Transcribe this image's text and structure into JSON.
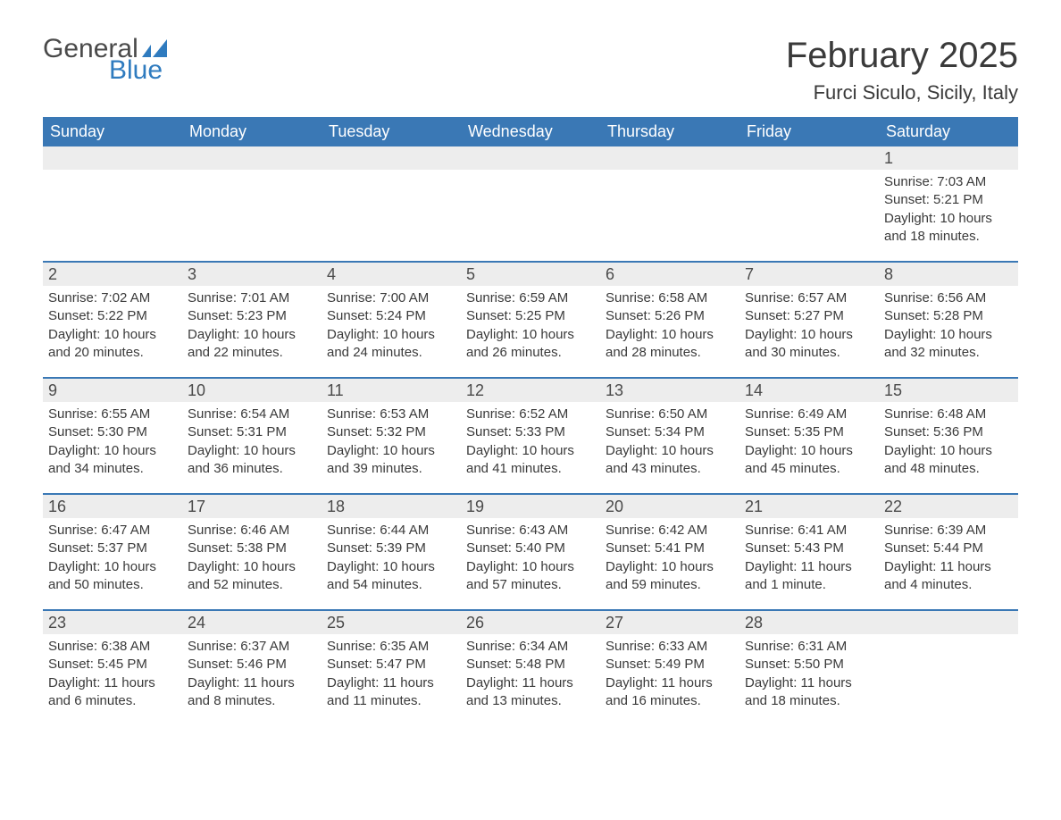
{
  "logo": {
    "text_general": "General",
    "text_blue": "Blue",
    "icon_color": "#2f7bbf"
  },
  "header": {
    "month_title": "February 2025",
    "location": "Furci Siculo, Sicily, Italy"
  },
  "colors": {
    "header_bg": "#3a78b5",
    "header_text": "#ffffff",
    "day_num_bg": "#ededed",
    "day_num_text": "#4a4a4a",
    "body_text": "#3a3a3a",
    "row_border": "#3a78b5",
    "page_bg": "#ffffff"
  },
  "day_of_week_labels": [
    "Sunday",
    "Monday",
    "Tuesday",
    "Wednesday",
    "Thursday",
    "Friday",
    "Saturday"
  ],
  "weeks": [
    [
      {
        "day": "",
        "sunrise": "",
        "sunset": "",
        "daylight": ""
      },
      {
        "day": "",
        "sunrise": "",
        "sunset": "",
        "daylight": ""
      },
      {
        "day": "",
        "sunrise": "",
        "sunset": "",
        "daylight": ""
      },
      {
        "day": "",
        "sunrise": "",
        "sunset": "",
        "daylight": ""
      },
      {
        "day": "",
        "sunrise": "",
        "sunset": "",
        "daylight": ""
      },
      {
        "day": "",
        "sunrise": "",
        "sunset": "",
        "daylight": ""
      },
      {
        "day": "1",
        "sunrise": "Sunrise: 7:03 AM",
        "sunset": "Sunset: 5:21 PM",
        "daylight": "Daylight: 10 hours and 18 minutes."
      }
    ],
    [
      {
        "day": "2",
        "sunrise": "Sunrise: 7:02 AM",
        "sunset": "Sunset: 5:22 PM",
        "daylight": "Daylight: 10 hours and 20 minutes."
      },
      {
        "day": "3",
        "sunrise": "Sunrise: 7:01 AM",
        "sunset": "Sunset: 5:23 PM",
        "daylight": "Daylight: 10 hours and 22 minutes."
      },
      {
        "day": "4",
        "sunrise": "Sunrise: 7:00 AM",
        "sunset": "Sunset: 5:24 PM",
        "daylight": "Daylight: 10 hours and 24 minutes."
      },
      {
        "day": "5",
        "sunrise": "Sunrise: 6:59 AM",
        "sunset": "Sunset: 5:25 PM",
        "daylight": "Daylight: 10 hours and 26 minutes."
      },
      {
        "day": "6",
        "sunrise": "Sunrise: 6:58 AM",
        "sunset": "Sunset: 5:26 PM",
        "daylight": "Daylight: 10 hours and 28 minutes."
      },
      {
        "day": "7",
        "sunrise": "Sunrise: 6:57 AM",
        "sunset": "Sunset: 5:27 PM",
        "daylight": "Daylight: 10 hours and 30 minutes."
      },
      {
        "day": "8",
        "sunrise": "Sunrise: 6:56 AM",
        "sunset": "Sunset: 5:28 PM",
        "daylight": "Daylight: 10 hours and 32 minutes."
      }
    ],
    [
      {
        "day": "9",
        "sunrise": "Sunrise: 6:55 AM",
        "sunset": "Sunset: 5:30 PM",
        "daylight": "Daylight: 10 hours and 34 minutes."
      },
      {
        "day": "10",
        "sunrise": "Sunrise: 6:54 AM",
        "sunset": "Sunset: 5:31 PM",
        "daylight": "Daylight: 10 hours and 36 minutes."
      },
      {
        "day": "11",
        "sunrise": "Sunrise: 6:53 AM",
        "sunset": "Sunset: 5:32 PM",
        "daylight": "Daylight: 10 hours and 39 minutes."
      },
      {
        "day": "12",
        "sunrise": "Sunrise: 6:52 AM",
        "sunset": "Sunset: 5:33 PM",
        "daylight": "Daylight: 10 hours and 41 minutes."
      },
      {
        "day": "13",
        "sunrise": "Sunrise: 6:50 AM",
        "sunset": "Sunset: 5:34 PM",
        "daylight": "Daylight: 10 hours and 43 minutes."
      },
      {
        "day": "14",
        "sunrise": "Sunrise: 6:49 AM",
        "sunset": "Sunset: 5:35 PM",
        "daylight": "Daylight: 10 hours and 45 minutes."
      },
      {
        "day": "15",
        "sunrise": "Sunrise: 6:48 AM",
        "sunset": "Sunset: 5:36 PM",
        "daylight": "Daylight: 10 hours and 48 minutes."
      }
    ],
    [
      {
        "day": "16",
        "sunrise": "Sunrise: 6:47 AM",
        "sunset": "Sunset: 5:37 PM",
        "daylight": "Daylight: 10 hours and 50 minutes."
      },
      {
        "day": "17",
        "sunrise": "Sunrise: 6:46 AM",
        "sunset": "Sunset: 5:38 PM",
        "daylight": "Daylight: 10 hours and 52 minutes."
      },
      {
        "day": "18",
        "sunrise": "Sunrise: 6:44 AM",
        "sunset": "Sunset: 5:39 PM",
        "daylight": "Daylight: 10 hours and 54 minutes."
      },
      {
        "day": "19",
        "sunrise": "Sunrise: 6:43 AM",
        "sunset": "Sunset: 5:40 PM",
        "daylight": "Daylight: 10 hours and 57 minutes."
      },
      {
        "day": "20",
        "sunrise": "Sunrise: 6:42 AM",
        "sunset": "Sunset: 5:41 PM",
        "daylight": "Daylight: 10 hours and 59 minutes."
      },
      {
        "day": "21",
        "sunrise": "Sunrise: 6:41 AM",
        "sunset": "Sunset: 5:43 PM",
        "daylight": "Daylight: 11 hours and 1 minute."
      },
      {
        "day": "22",
        "sunrise": "Sunrise: 6:39 AM",
        "sunset": "Sunset: 5:44 PM",
        "daylight": "Daylight: 11 hours and 4 minutes."
      }
    ],
    [
      {
        "day": "23",
        "sunrise": "Sunrise: 6:38 AM",
        "sunset": "Sunset: 5:45 PM",
        "daylight": "Daylight: 11 hours and 6 minutes."
      },
      {
        "day": "24",
        "sunrise": "Sunrise: 6:37 AM",
        "sunset": "Sunset: 5:46 PM",
        "daylight": "Daylight: 11 hours and 8 minutes."
      },
      {
        "day": "25",
        "sunrise": "Sunrise: 6:35 AM",
        "sunset": "Sunset: 5:47 PM",
        "daylight": "Daylight: 11 hours and 11 minutes."
      },
      {
        "day": "26",
        "sunrise": "Sunrise: 6:34 AM",
        "sunset": "Sunset: 5:48 PM",
        "daylight": "Daylight: 11 hours and 13 minutes."
      },
      {
        "day": "27",
        "sunrise": "Sunrise: 6:33 AM",
        "sunset": "Sunset: 5:49 PM",
        "daylight": "Daylight: 11 hours and 16 minutes."
      },
      {
        "day": "28",
        "sunrise": "Sunrise: 6:31 AM",
        "sunset": "Sunset: 5:50 PM",
        "daylight": "Daylight: 11 hours and 18 minutes."
      },
      {
        "day": "",
        "sunrise": "",
        "sunset": "",
        "daylight": ""
      }
    ]
  ]
}
